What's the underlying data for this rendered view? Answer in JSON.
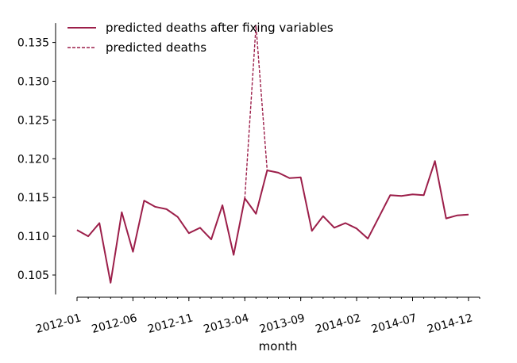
{
  "chart_data": {
    "type": "line",
    "xlabel": "month",
    "ylabel": "",
    "ylim": [
      0.1025,
      0.1375
    ],
    "y_ticks": [
      "0.105",
      "0.110",
      "0.115",
      "0.120",
      "0.125",
      "0.130",
      "0.135"
    ],
    "x_ticks": [
      "2012-01",
      "2012-06",
      "2012-11",
      "2013-04",
      "2013-09",
      "2014-02",
      "2014-07",
      "2014-12"
    ],
    "x": [
      "2012-01",
      "2012-02",
      "2012-03",
      "2012-04",
      "2012-05",
      "2012-06",
      "2012-07",
      "2012-08",
      "2012-09",
      "2012-10",
      "2012-11",
      "2012-12",
      "2013-01",
      "2013-02",
      "2013-03",
      "2013-04",
      "2013-05",
      "2013-06",
      "2013-07",
      "2013-08",
      "2013-09",
      "2013-10",
      "2013-11",
      "2013-12",
      "2014-01",
      "2014-02",
      "2014-03",
      "2014-04",
      "2014-05",
      "2014-06",
      "2014-07",
      "2014-08",
      "2014-09",
      "2014-10",
      "2014-11",
      "2014-12",
      "2015-01"
    ],
    "legend_position": "top-left",
    "grid": false,
    "series": [
      {
        "name": "predicted deaths after fixing variables",
        "style": "solid",
        "color": "#9c1f4a",
        "values": [
          0.1108,
          0.11,
          0.1117,
          0.104,
          0.1131,
          0.108,
          0.1146,
          0.1138,
          0.1135,
          0.1125,
          0.1104,
          0.1111,
          0.1096,
          0.114,
          0.1076,
          0.1149,
          0.1129,
          0.1185,
          0.1182,
          0.1175,
          0.1176,
          0.1107,
          0.1126,
          0.1111,
          0.1117,
          0.111,
          0.1097,
          0.1125,
          0.1153,
          0.1152,
          0.1154,
          0.1153,
          0.1197,
          0.1123,
          0.1127,
          0.1128,
          null
        ]
      },
      {
        "name": "predicted deaths",
        "style": "dashed",
        "color": "#9c1f4a",
        "values": [
          0.1108,
          0.11,
          0.1117,
          0.104,
          0.1131,
          0.108,
          0.1146,
          0.1138,
          0.1135,
          0.1125,
          0.1104,
          0.1111,
          0.1096,
          0.114,
          0.1076,
          0.1149,
          0.1372,
          0.1185,
          0.1182,
          0.1175,
          0.1176,
          0.1107,
          0.1126,
          0.1111,
          0.1117,
          0.111,
          0.1097,
          0.1125,
          0.1153,
          0.1152,
          0.1154,
          0.1153,
          0.1197,
          0.1123,
          0.1127,
          0.1128,
          null
        ]
      }
    ]
  }
}
